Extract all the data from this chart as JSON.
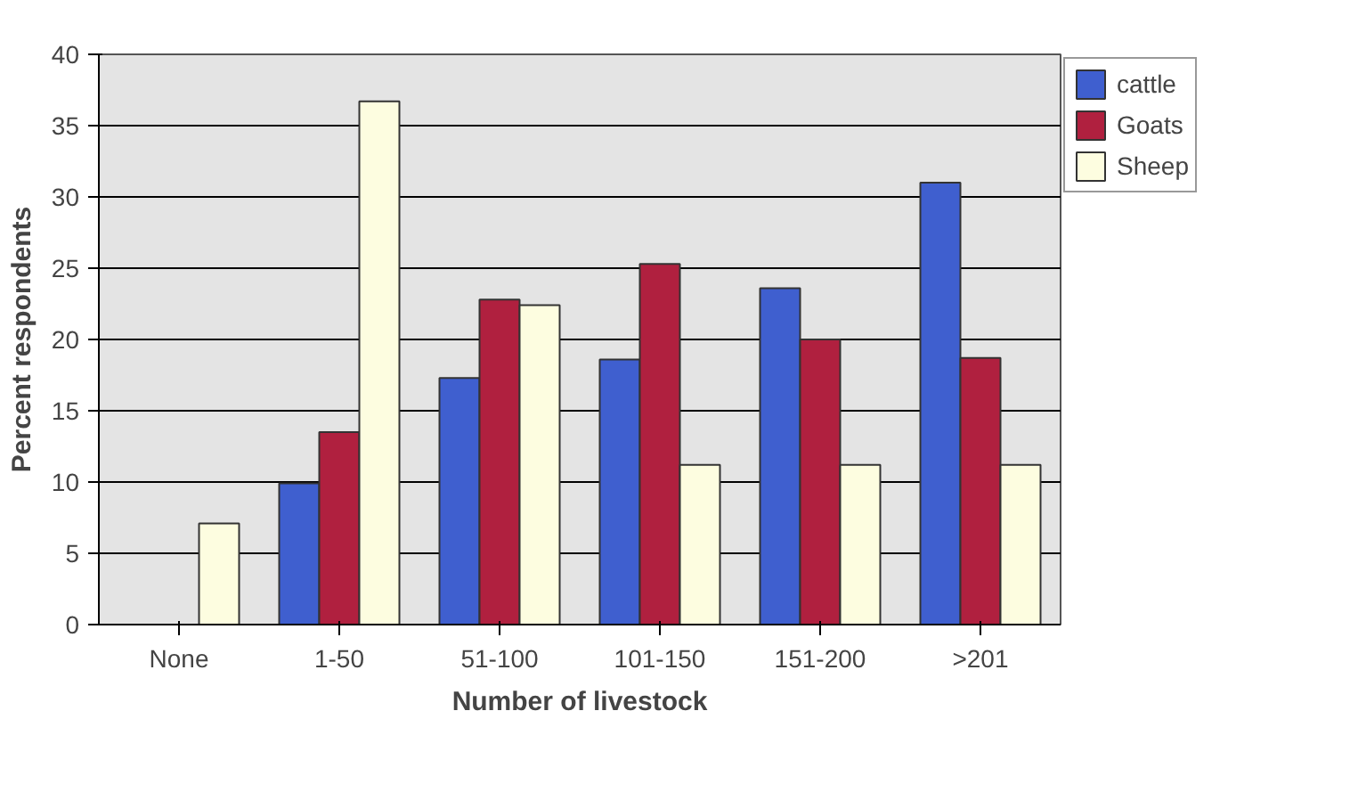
{
  "chart_data": {
    "type": "bar",
    "xlabel": "Number of livestock",
    "ylabel": "Percent respondents",
    "categories": [
      "None",
      "1-50",
      "51-100",
      "101-150",
      "151-200",
      ">201"
    ],
    "series": [
      {
        "name": "cattle",
        "color": "#3f5fcf",
        "values": [
          null,
          9.9,
          17.3,
          18.6,
          23.6,
          31
        ]
      },
      {
        "name": "Goats",
        "color": "#b0203f",
        "values": [
          null,
          13.5,
          22.8,
          25.3,
          20,
          18.7
        ]
      },
      {
        "name": "Sheep",
        "color": "#fdfde0",
        "values": [
          7.1,
          36.7,
          22.4,
          11.2,
          11.2,
          11.2
        ]
      }
    ],
    "ylim": [
      0,
      40
    ],
    "yticks": [
      0,
      5,
      10,
      15,
      20,
      25,
      30,
      35,
      40
    ],
    "grid": "y",
    "legend": "top right"
  }
}
